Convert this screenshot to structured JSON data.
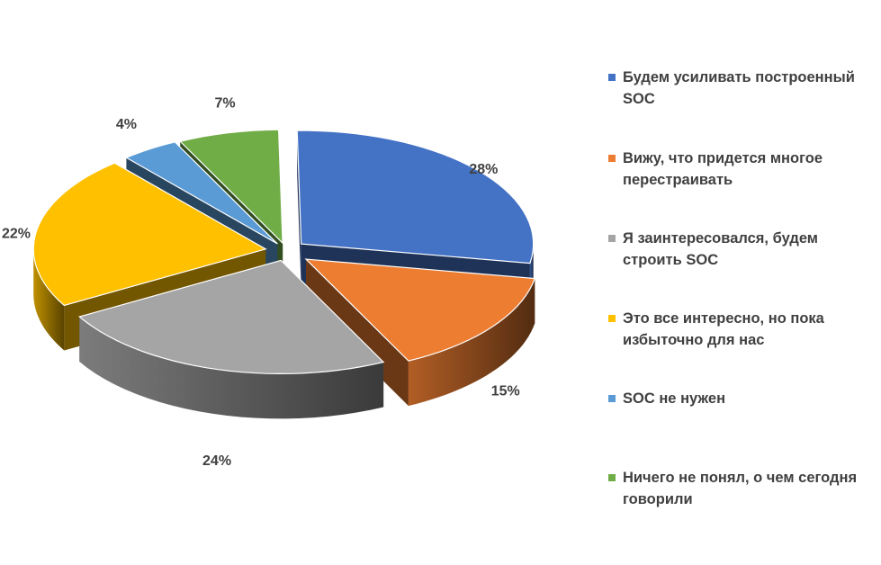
{
  "chart_data": {
    "type": "pie",
    "title": "",
    "legend_position": "right",
    "slices": [
      {
        "label": "Будем усиливать построенный SOC",
        "value": 28,
        "display": "28%",
        "color": "#4472C4",
        "exploded": false
      },
      {
        "label": "Вижу, что придется многое перестраивать",
        "value": 15,
        "display": "15%",
        "color": "#ED7D31",
        "exploded": false
      },
      {
        "label": "Я заинтересовался, будем строить SOC",
        "value": 24,
        "display": "24%",
        "color": "#A5A5A5",
        "exploded": false
      },
      {
        "label": "Это все интересно, но пока избыточно для нас",
        "value": 22,
        "display": "22%",
        "color": "#FFC000",
        "exploded": false
      },
      {
        "label": "SOC не нужен",
        "value": 4,
        "display": "4%",
        "color": "#5B9BD5",
        "exploded": false
      },
      {
        "label": "Ничего не понял, о чем сегодня говорили",
        "value": 7,
        "display": "7%",
        "color": "#70AD47",
        "exploded": false
      }
    ]
  },
  "legend": {
    "items": [
      {
        "text": "Будем усиливать построенный\nSOC",
        "color": "#4472C4"
      },
      {
        "text": "Вижу, что придется многое\nперестраивать",
        "color": "#ED7D31"
      },
      {
        "text": "Я заинтересовался, будем\nстроить SOC",
        "color": "#A5A5A5"
      },
      {
        "text": "Это все интересно, но пока\nизбыточно для нас",
        "color": "#FFC000"
      },
      {
        "text": "SOC не нужен",
        "color": "#5B9BD5"
      },
      {
        "text": "Ничего не понял, о чем сегодня\nговорили",
        "color": "#70AD47"
      }
    ]
  }
}
